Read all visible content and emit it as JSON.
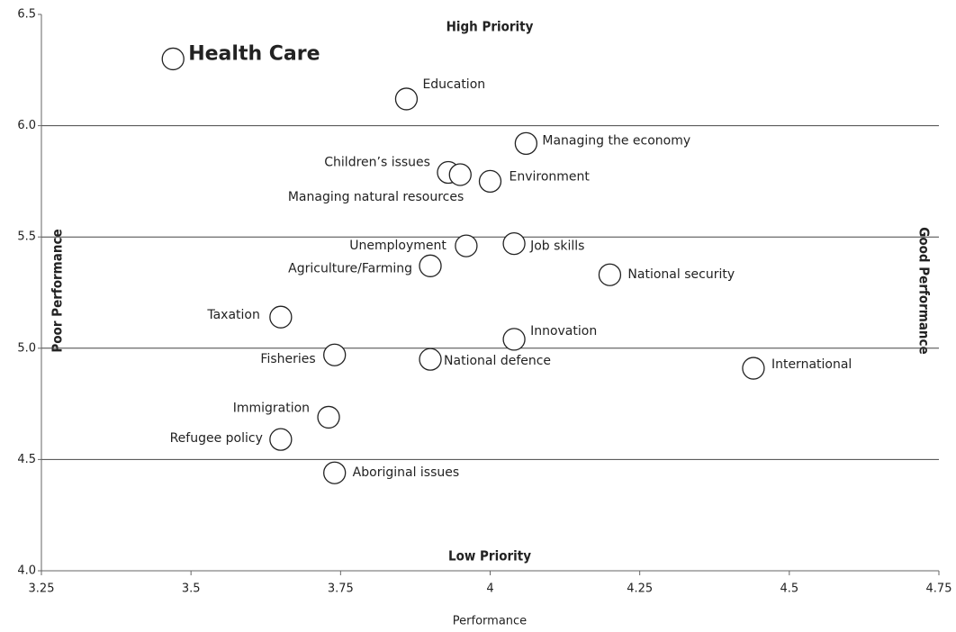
{
  "chart_data": {
    "type": "scatter",
    "x_label": "Performance",
    "annotations": [
      "High Priority",
      "Low Priority",
      "Poor Performance",
      "Good Performance"
    ],
    "point_labels": [
      "Health Care",
      "Education",
      "Managing the economy",
      "Children’s issues",
      "Managing natural resources",
      "Environment",
      "Unemployment",
      "Job skills",
      "Agriculture/Farming",
      "National security",
      "Taxation",
      "Innovation",
      "Fisheries",
      "National defence",
      "International",
      "Immigration",
      "Refugee policy",
      "Aboriginal issues"
    ],
    "x": [
      3.47,
      3.86,
      4.06,
      3.93,
      3.95,
      4.0,
      3.96,
      4.04,
      3.9,
      4.2,
      3.65,
      4.04,
      3.74,
      3.9,
      4.44,
      3.73,
      3.65,
      3.74
    ],
    "y": [
      6.3,
      6.12,
      5.92,
      5.79,
      5.78,
      5.75,
      5.46,
      5.47,
      5.37,
      5.33,
      5.14,
      5.04,
      4.97,
      4.95,
      4.91,
      4.69,
      4.59,
      4.44
    ],
    "xlim": [
      3.25,
      4.75
    ],
    "xticks": [
      3.25,
      3.5,
      3.75,
      4,
      4.25,
      4.5,
      4.75
    ],
    "ylim": [
      4.0,
      6.5
    ],
    "yticks": [
      {
        "value": 4,
        "label": "4.0"
      },
      4.5,
      {
        "value": 5,
        "label": "5.0"
      },
      5.5,
      {
        "value": 6,
        "label": "6.0"
      },
      6.5
    ],
    "grid": true,
    "marker_color": "#ffffff",
    "marker_edge": "#222222"
  }
}
